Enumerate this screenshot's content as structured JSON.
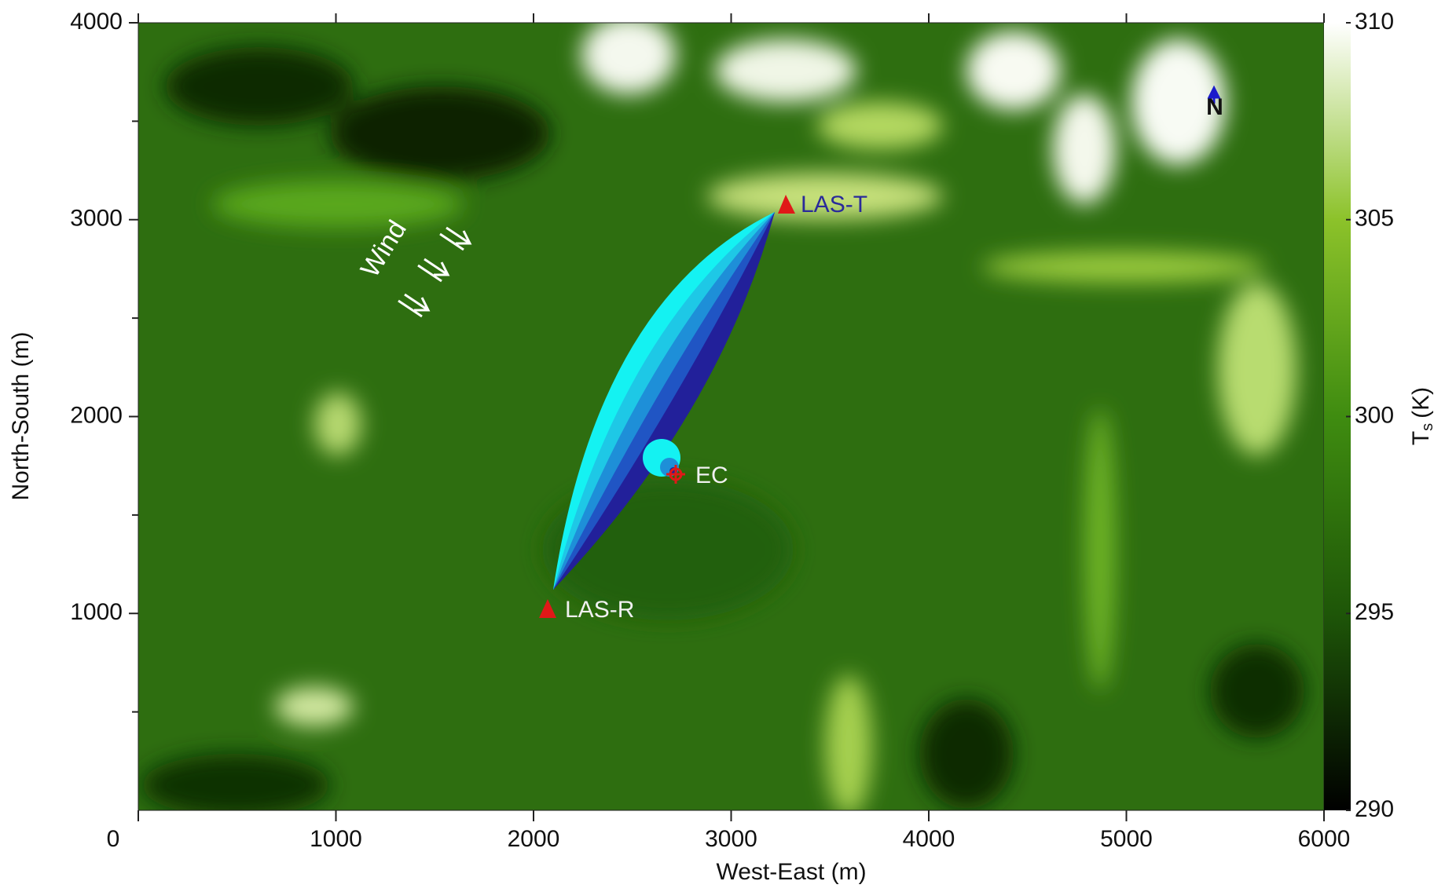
{
  "chart_data": {
    "type": "map",
    "xlabel": "West-East (m)",
    "ylabel": "North-South (m)",
    "xlim": [
      0,
      6000
    ],
    "ylim": [
      0,
      4000
    ],
    "xticks": [
      0,
      1000,
      2000,
      3000,
      4000,
      5000,
      6000
    ],
    "yticks": [
      1000,
      2000,
      3000,
      4000
    ],
    "colorbar": {
      "label": "T",
      "label_sub": "s",
      "label_unit": "(K)",
      "lim": [
        290,
        310
      ],
      "ticks": [
        290,
        295,
        300,
        305,
        310
      ],
      "colors": [
        "#000000",
        "#1e5608",
        "#3f8c10",
        "#8cc22a",
        "#ffffff"
      ]
    },
    "annotations": {
      "wind": "Wind",
      "north": "N",
      "las_t": "LAS-T",
      "las_r": "LAS-R",
      "ec": "EC"
    }
  }
}
